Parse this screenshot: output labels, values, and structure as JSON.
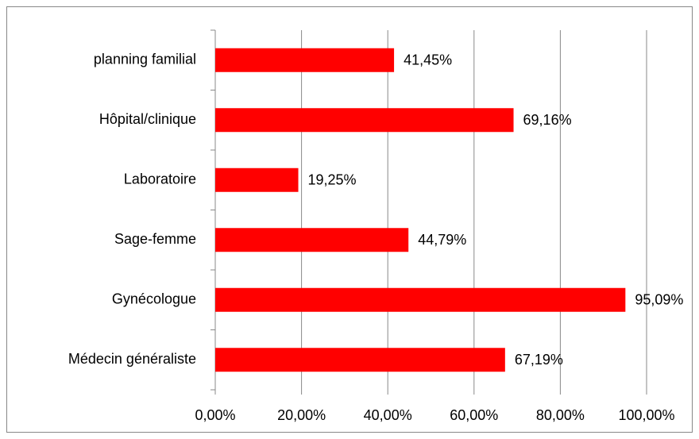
{
  "chart_data": {
    "type": "bar",
    "orientation": "horizontal",
    "categories": [
      "planning familial",
      "Hôpital/clinique",
      "Laboratoire",
      "Sage-femme",
      "Gynécologue",
      "Médecin généraliste"
    ],
    "values": [
      41.45,
      69.16,
      19.25,
      44.79,
      95.09,
      67.19
    ],
    "value_labels": [
      "41,45%",
      "69,16%",
      "19,25%",
      "44,79%",
      "95,09%",
      "67,19%"
    ],
    "color": "#ff0000",
    "xlim": [
      0,
      100
    ],
    "xticks": [
      {
        "value": 0,
        "label": "0,00%"
      },
      {
        "value": 20,
        "label": "20,00%"
      },
      {
        "value": 40,
        "label": "40,00%"
      },
      {
        "value": 60,
        "label": "60,00%"
      },
      {
        "value": 80,
        "label": "80,00%"
      },
      {
        "value": 100,
        "label": "100,00%"
      }
    ],
    "grid": true
  }
}
